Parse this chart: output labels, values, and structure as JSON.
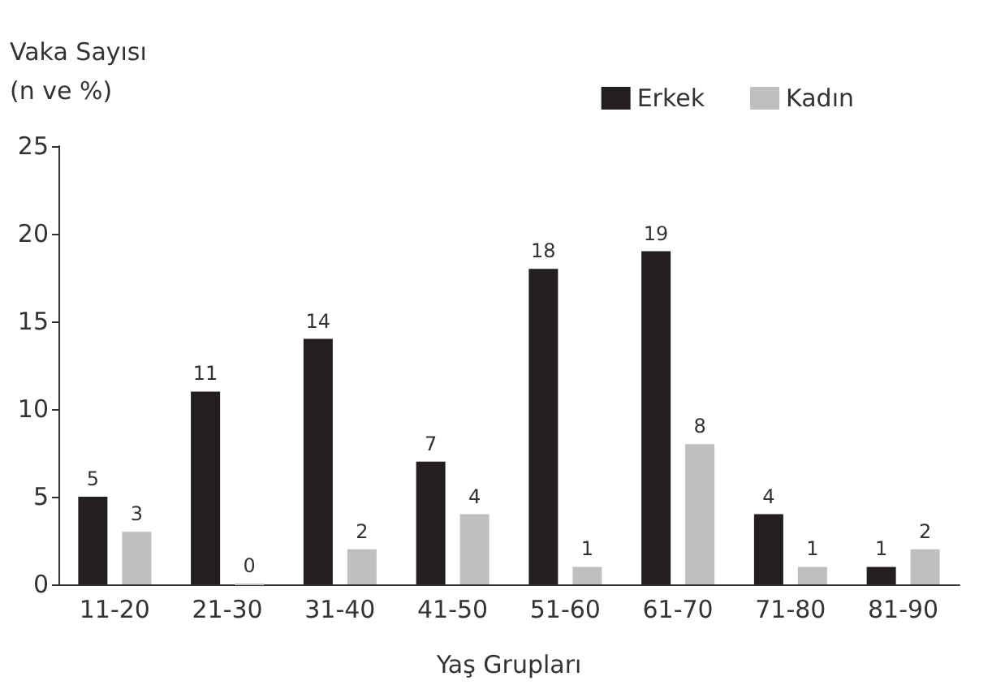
{
  "chart_data": {
    "type": "bar",
    "ylabel": "Vaka Sayısı\n(n ve %)",
    "xlabel": "Yaş Grupları",
    "categories": [
      "11-20",
      "21-30",
      "31-40",
      "41-50",
      "51-60",
      "61-70",
      "71-80",
      "81-90"
    ],
    "series": [
      {
        "name": "Erkek",
        "color": "#231f20",
        "values": [
          5,
          11,
          14,
          7,
          18,
          19,
          4,
          1
        ]
      },
      {
        "name": "Kadın",
        "color": "#bfbfbf",
        "values": [
          3,
          0,
          2,
          4,
          1,
          8,
          1,
          2
        ]
      }
    ],
    "ylim": [
      0,
      25
    ],
    "yticks": [
      0,
      5,
      10,
      15,
      20,
      25
    ],
    "grid": false,
    "legend": "top right",
    "data_labels": true
  }
}
